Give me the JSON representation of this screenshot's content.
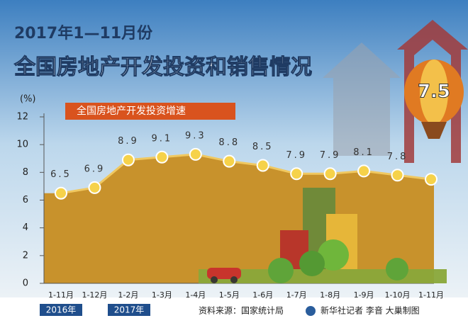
{
  "chart_data": {
    "type": "area",
    "subtitle": "2017年1—11月份",
    "title": "全国房地产开发投资和销售情况",
    "y_label": "(%)",
    "categories": [
      "1-11月",
      "1-12月",
      "1-2月",
      "1-3月",
      "1-4月",
      "1-5月",
      "1-6月",
      "1-7月",
      "1-8月",
      "1-9月",
      "1-10月",
      "1-11月"
    ],
    "x_groups": [
      "2016年",
      "2017年"
    ],
    "series": [
      {
        "name": "全国房地产开发投资增速",
        "color": "#c8922c",
        "values": [
          6.5,
          6.9,
          8.9,
          9.1,
          9.3,
          8.8,
          8.5,
          7.9,
          7.9,
          8.1,
          7.8,
          7.5
        ]
      }
    ],
    "ylim": [
      0,
      12
    ],
    "yticks": [
      0,
      2,
      4,
      6,
      8,
      10,
      12
    ],
    "source": "资料来源：国家统计局",
    "credit": "新华社记者 李音 大巢制图"
  }
}
